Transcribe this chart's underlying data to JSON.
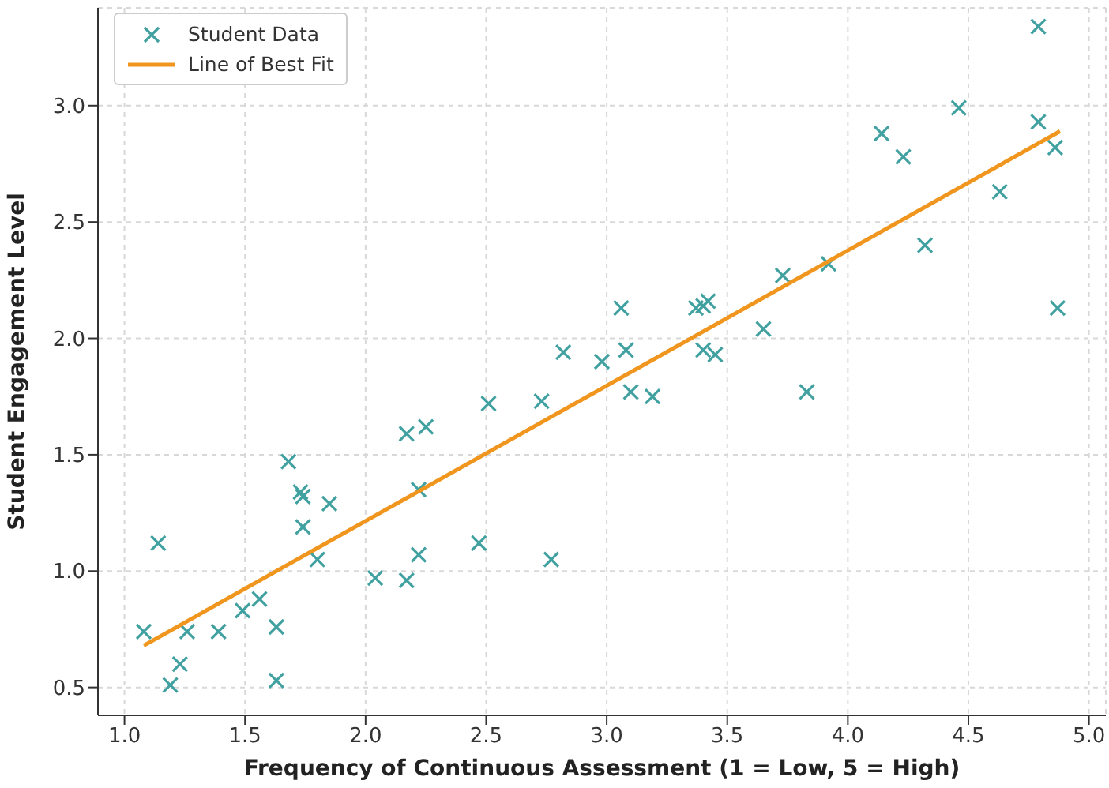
{
  "chart_data": {
    "type": "scatter",
    "xlabel": "Frequency of Continuous Assessment (1 = Low, 5 = High)",
    "ylabel": "Student Engagement Level",
    "xlim": [
      0.89,
      5.07
    ],
    "xticks": [
      {
        "value": 1,
        "label": "1.0"
      },
      1.5,
      {
        "value": 2,
        "label": "2.0"
      },
      2.5,
      {
        "value": 3,
        "label": "3.0"
      },
      3.5,
      {
        "value": 4,
        "label": "4.0"
      },
      4.5,
      {
        "value": 5,
        "label": "5.0"
      }
    ],
    "ylim": [
      0.38,
      3.42
    ],
    "yticks": [
      0.5,
      {
        "value": 1,
        "label": "1.0"
      },
      1.5,
      {
        "value": 2,
        "label": "2.0"
      },
      2.5,
      {
        "value": 3,
        "label": "3.0"
      }
    ],
    "grid": true,
    "legend": "top left",
    "marker": "cross",
    "line_style": "solid",
    "series": [
      {
        "name": "Student Data",
        "color": "#41a0a0",
        "x": [
          1.08,
          1.14,
          1.19,
          1.23,
          1.26,
          1.39,
          1.49,
          1.56,
          1.63,
          1.63,
          1.68,
          1.73,
          1.74,
          1.74,
          1.8,
          1.85,
          2.04,
          2.17,
          2.17,
          2.22,
          2.22,
          2.25,
          2.47,
          2.51,
          2.73,
          2.77,
          2.82,
          2.98,
          3.06,
          3.08,
          3.1,
          3.19,
          3.37,
          3.4,
          3.42,
          3.4,
          3.45,
          3.65,
          3.73,
          3.83,
          3.92,
          4.14,
          4.23,
          4.32,
          4.46,
          4.63,
          4.79,
          4.79,
          4.86,
          4.87
        ],
        "values": [
          0.74,
          1.12,
          0.51,
          0.6,
          0.74,
          0.74,
          0.83,
          0.88,
          0.76,
          0.53,
          1.47,
          1.34,
          1.32,
          1.19,
          1.05,
          1.29,
          0.97,
          1.59,
          0.96,
          1.07,
          1.35,
          1.62,
          1.12,
          1.72,
          1.73,
          1.05,
          1.94,
          1.9,
          2.13,
          1.95,
          1.77,
          1.75,
          2.13,
          2.14,
          2.16,
          1.95,
          1.93,
          2.04,
          2.27,
          1.77,
          2.32,
          2.88,
          2.78,
          2.4,
          2.99,
          2.63,
          3.34,
          2.93,
          2.82,
          2.13
        ]
      },
      {
        "name": "Line of Best Fit",
        "type": "line",
        "color": "#f0961e",
        "marker": "none",
        "x": [
          1.08,
          4.88
        ],
        "values": [
          0.68,
          2.89
        ]
      }
    ]
  }
}
